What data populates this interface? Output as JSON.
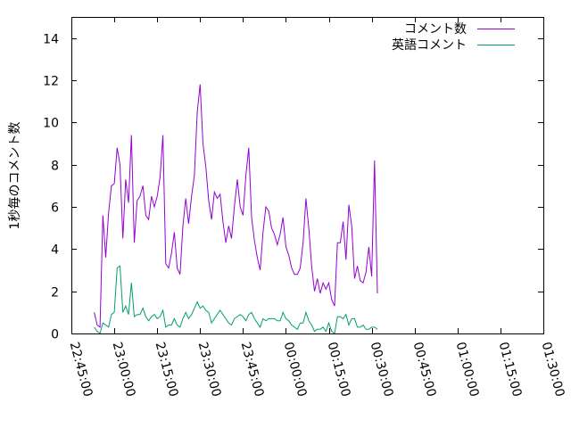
{
  "chart_data": {
    "type": "line",
    "title": "",
    "xlabel": "",
    "ylabel": "1秒毎のコメント数",
    "x_tick_labels": [
      "22:45:00",
      "23:00:00",
      "23:15:00",
      "23:30:00",
      "23:45:00",
      "00:00:00",
      "00:15:00",
      "00:30:00",
      "00:45:00",
      "01:00:00",
      "01:15:00",
      "01:30:00"
    ],
    "y_tick_labels": [
      "0",
      "2",
      "4",
      "6",
      "8",
      "10",
      "12",
      "14"
    ],
    "ylim": [
      0,
      15
    ],
    "x_range": [
      "22:45:00",
      "01:30:00"
    ],
    "x_tick_interval_minutes": 15,
    "x_sample_interval_minutes": 1,
    "x_start": "22:53:00",
    "grid": false,
    "legend_position": "top-right",
    "series": [
      {
        "name": "コメント数",
        "color": "#9400d3",
        "values": [
          1.0,
          0.4,
          0.3,
          5.6,
          3.6,
          5.7,
          7.0,
          7.1,
          8.8,
          8.0,
          4.5,
          7.3,
          6.2,
          9.4,
          4.3,
          6.3,
          6.5,
          7.0,
          5.6,
          5.4,
          6.5,
          6.0,
          6.5,
          7.4,
          9.4,
          3.3,
          3.1,
          3.8,
          4.8,
          3.1,
          2.8,
          5.1,
          6.4,
          5.2,
          6.5,
          7.5,
          10.5,
          11.8,
          9.0,
          7.9,
          6.3,
          5.4,
          6.7,
          6.4,
          6.6,
          5.3,
          4.3,
          5.1,
          4.5,
          6.0,
          7.3,
          6.0,
          5.6,
          7.5,
          8.8,
          5.5,
          4.4,
          3.6,
          3.0,
          4.8,
          6.0,
          5.8,
          5.0,
          4.7,
          4.2,
          4.7,
          5.5,
          4.1,
          3.7,
          3.1,
          2.8,
          2.8,
          3.1,
          4.3,
          6.4,
          5.0,
          3.2,
          2.0,
          2.6,
          1.9,
          2.4,
          2.1,
          2.4,
          1.6,
          1.3,
          4.3,
          4.3,
          5.3,
          3.5,
          6.1,
          5.1,
          2.6,
          3.2,
          2.5,
          2.4,
          2.9,
          4.1,
          2.7,
          8.2,
          1.9
        ]
      },
      {
        "name": "英語コメント",
        "color": "#009e73",
        "values": [
          0.3,
          0.1,
          0.0,
          0.5,
          0.4,
          0.3,
          0.9,
          1.0,
          3.1,
          3.2,
          1.0,
          1.3,
          0.9,
          2.4,
          0.8,
          0.9,
          0.9,
          1.2,
          0.8,
          0.6,
          0.8,
          0.9,
          0.7,
          0.8,
          1.1,
          0.3,
          0.4,
          0.4,
          0.7,
          0.4,
          0.3,
          0.7,
          1.0,
          0.7,
          0.9,
          1.2,
          1.5,
          1.2,
          1.3,
          1.1,
          1.0,
          0.5,
          0.7,
          0.9,
          1.1,
          0.9,
          0.7,
          0.5,
          0.4,
          0.7,
          0.8,
          0.9,
          0.8,
          0.6,
          0.9,
          1.0,
          0.7,
          0.5,
          0.3,
          0.7,
          0.6,
          0.7,
          0.7,
          0.7,
          0.6,
          0.6,
          1.0,
          0.7,
          0.6,
          0.4,
          0.3,
          0.2,
          0.5,
          0.5,
          1.0,
          0.6,
          0.4,
          0.1,
          0.2,
          0.2,
          0.3,
          0.1,
          0.5,
          0.1,
          0.0,
          0.8,
          0.8,
          0.7,
          0.9,
          0.4,
          0.7,
          0.7,
          0.3,
          0.3,
          0.4,
          0.2,
          0.2,
          0.3,
          0.3,
          0.2
        ]
      }
    ]
  }
}
